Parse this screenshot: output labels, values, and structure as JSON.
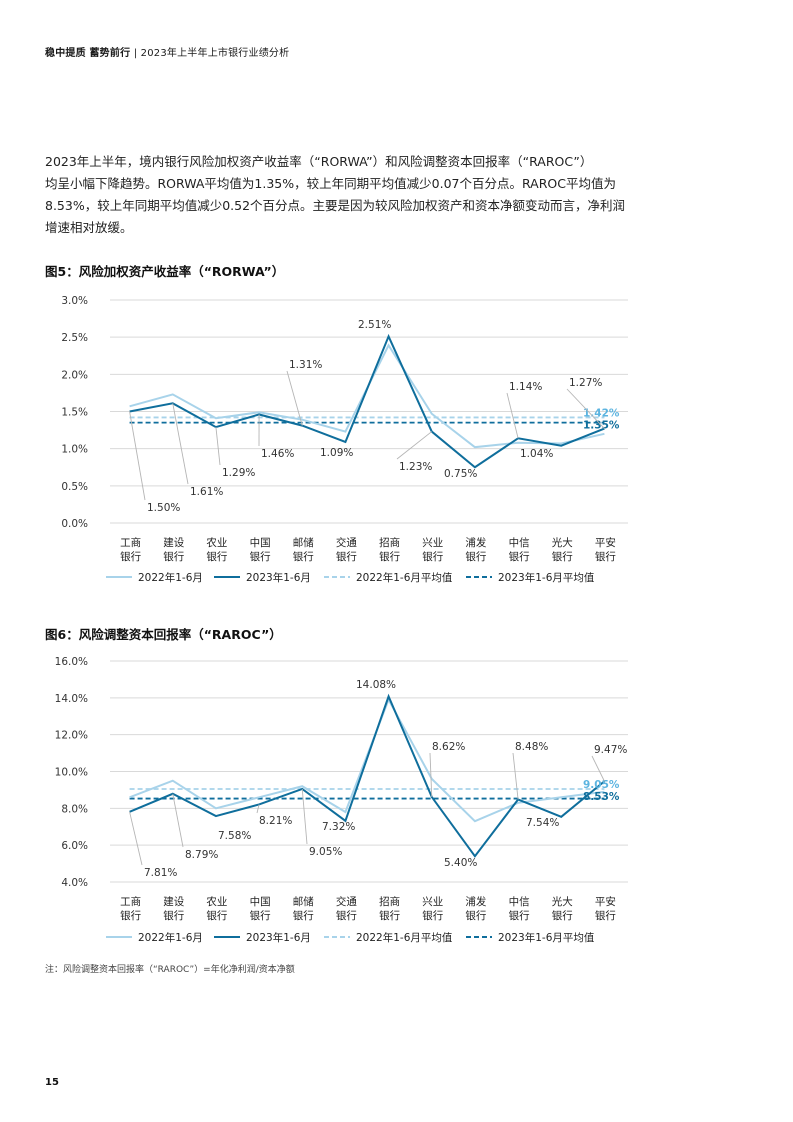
{
  "header": {
    "bold": "稳中提质 蓄势前行",
    "rest": "2023年上半年上市银行业绩分析"
  },
  "intro_lines": [
    "2023年上半年，境内银行风险加权资产收益率（“RORWA”）和风险调整资本回报率（“RAROC”）",
    "均呈小幅下降趋势。RORWA平均值为1.35%，较上年同期平均值减少0.07个百分点。RAROC平均值为",
    "8.53%，较上年同期平均值减少0.52个百分点。主要是因为较风险加权资产和资本净额变动而言，净利润",
    "增速相对放缓。"
  ],
  "colors": {
    "series_2022": "#a8d3ea",
    "series_2023": "#0f6e9c",
    "avg_2022": "#a8d3ea",
    "avg_2023": "#0f6e9c",
    "label_2022_avg": "#5cb4e0",
    "grid": "#d9d9d9"
  },
  "chart_data": [
    {
      "type": "line",
      "title": "图5：风险加权资产收益率（“RORWA”）",
      "categories": [
        [
          "工商",
          "银行"
        ],
        [
          "建设",
          "银行"
        ],
        [
          "农业",
          "银行"
        ],
        [
          "中国",
          "银行"
        ],
        [
          "邮储",
          "银行"
        ],
        [
          "交通",
          "银行"
        ],
        [
          "招商",
          "银行"
        ],
        [
          "兴业",
          "银行"
        ],
        [
          "浦发",
          "银行"
        ],
        [
          "中信",
          "银行"
        ],
        [
          "光大",
          "银行"
        ],
        [
          "平安",
          "银行"
        ]
      ],
      "ylim": [
        0,
        3.0
      ],
      "yticks": [
        0,
        0.5,
        1.0,
        1.5,
        2.0,
        2.5,
        3.0
      ],
      "ytick_labels": [
        "0.0%",
        "0.5%",
        "1.0%",
        "1.5%",
        "2.0%",
        "2.5%",
        "3.0%"
      ],
      "grid": true,
      "series": [
        {
          "name": "2022年1-6月",
          "values": [
            1.57,
            1.73,
            1.41,
            1.49,
            1.39,
            1.23,
            2.39,
            1.47,
            1.02,
            1.08,
            1.07,
            1.2
          ]
        },
        {
          "name": "2023年1-6月",
          "values": [
            1.5,
            1.61,
            1.29,
            1.46,
            1.31,
            1.09,
            2.51,
            1.23,
            0.75,
            1.14,
            1.04,
            1.27
          ]
        }
      ],
      "averages": [
        {
          "name": "2022年1-6月平均值",
          "value": 1.42,
          "label": "1.42%"
        },
        {
          "name": "2023年1-6月平均值",
          "value": 1.35,
          "label": "1.35%"
        }
      ],
      "data_labels": [
        "1.50%",
        "1.61%",
        "1.29%",
        "1.46%",
        "1.31%",
        "1.09%",
        "2.51%",
        "1.23%",
        "0.75%",
        "1.14%",
        "1.04%",
        "1.27%"
      ],
      "legend_position": "bottom"
    },
    {
      "type": "line",
      "title": "图6：风险调整资本回报率（“RAROC”）",
      "categories": [
        [
          "工商",
          "银行"
        ],
        [
          "建设",
          "银行"
        ],
        [
          "农业",
          "银行"
        ],
        [
          "中国",
          "银行"
        ],
        [
          "邮储",
          "银行"
        ],
        [
          "交通",
          "银行"
        ],
        [
          "招商",
          "银行"
        ],
        [
          "兴业",
          "银行"
        ],
        [
          "浦发",
          "银行"
        ],
        [
          "中信",
          "银行"
        ],
        [
          "光大",
          "银行"
        ],
        [
          "平安",
          "银行"
        ]
      ],
      "ylim": [
        4.0,
        16.0
      ],
      "yticks": [
        4,
        6,
        8,
        10,
        12,
        14,
        16
      ],
      "ytick_labels": [
        "4.0%",
        "6.0%",
        "8.0%",
        "10.0%",
        "12.0%",
        "14.0%",
        "16.0%"
      ],
      "grid": true,
      "series": [
        {
          "name": "2022年1-6月",
          "values": [
            8.6,
            9.5,
            8.0,
            8.6,
            9.2,
            7.8,
            13.9,
            9.6,
            7.3,
            8.3,
            8.6,
            8.9
          ]
        },
        {
          "name": "2023年1-6月",
          "values": [
            7.81,
            8.79,
            7.58,
            8.21,
            9.05,
            7.32,
            14.08,
            8.62,
            5.4,
            8.48,
            7.54,
            9.47
          ]
        }
      ],
      "averages": [
        {
          "name": "2022年1-6月平均值",
          "value": 9.05,
          "label": "9.05%"
        },
        {
          "name": "2023年1-6月平均值",
          "value": 8.53,
          "label": "8.53%"
        }
      ],
      "data_labels": [
        "7.81%",
        "8.79%",
        "7.58%",
        "8.21%",
        "9.05%",
        "7.32%",
        "14.08%",
        "8.62%",
        "5.40%",
        "8.48%",
        "7.54%",
        "9.47%"
      ],
      "legend_position": "bottom"
    }
  ],
  "legend": [
    "2022年1-6月",
    "2023年1-6月",
    "2022年1-6月平均值",
    "2023年1-6月平均值"
  ],
  "note": "注：风险调整资本回报率（“RAROC”）=年化净利润/资本净额",
  "page_number": "15"
}
